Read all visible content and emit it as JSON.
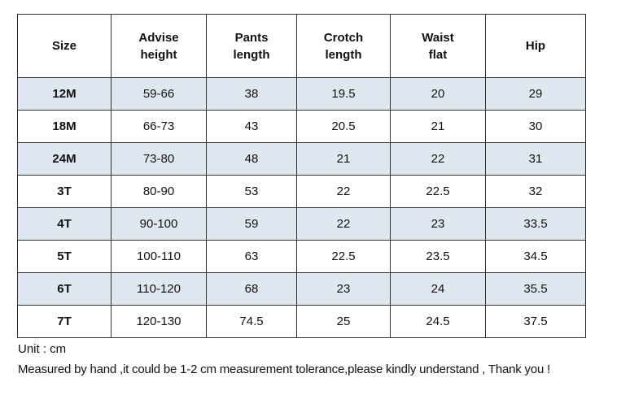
{
  "table": {
    "headers": [
      {
        "line1": "Size",
        "line2": ""
      },
      {
        "line1": "Advise",
        "line2": "height"
      },
      {
        "line1": "Pants",
        "line2": "length"
      },
      {
        "line1": "Crotch",
        "line2": "length"
      },
      {
        "line1": "Waist",
        "line2": "flat"
      },
      {
        "line1": "Hip",
        "line2": ""
      }
    ],
    "rows": [
      {
        "size": "12M",
        "height": "59-66",
        "pants": "38",
        "crotch": "19.5",
        "waist": "20",
        "hip": "29"
      },
      {
        "size": "18M",
        "height": "66-73",
        "pants": "43",
        "crotch": "20.5",
        "waist": "21",
        "hip": "30"
      },
      {
        "size": "24M",
        "height": "73-80",
        "pants": "48",
        "crotch": "21",
        "waist": "22",
        "hip": "31"
      },
      {
        "size": "3T",
        "height": "80-90",
        "pants": "53",
        "crotch": "22",
        "waist": "22.5",
        "hip": "32"
      },
      {
        "size": "4T",
        "height": "90-100",
        "pants": "59",
        "crotch": "22",
        "waist": "23",
        "hip": "33.5"
      },
      {
        "size": "5T",
        "height": "100-110",
        "pants": "63",
        "crotch": "22.5",
        "waist": "23.5",
        "hip": "34.5"
      },
      {
        "size": "6T",
        "height": "110-120",
        "pants": "68",
        "crotch": "23",
        "waist": "24",
        "hip": "35.5"
      },
      {
        "size": "7T",
        "height": "120-130",
        "pants": "74.5",
        "crotch": "25",
        "waist": "24.5",
        "hip": "37.5"
      }
    ],
    "shaded_row_color": "#dfe7f0"
  },
  "notes": {
    "unit": "Unit : cm",
    "message": "Measured by hand ,it could be 1-2 cm measurement tolerance,please kindly understand , Thank you !"
  }
}
